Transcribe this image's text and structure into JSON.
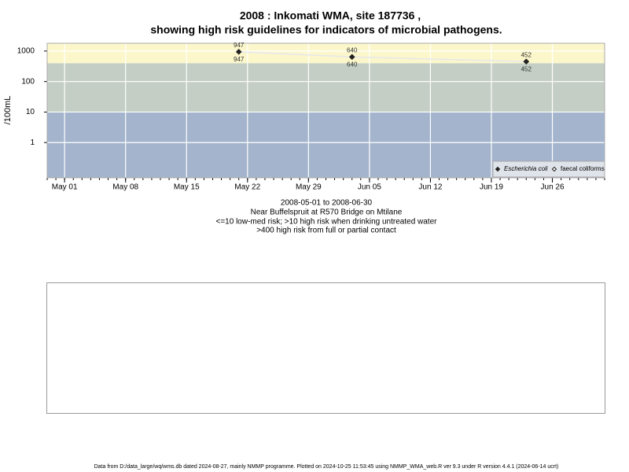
{
  "chart_data": {
    "type": "line",
    "title": "2008 : Inkomati WMA, site 187736 ,",
    "subtitle": "showing high risk guidelines for indicators of microbial pathogens.",
    "y_label": "/100mL",
    "x_caption": [
      "2008-05-01 to 2008-06-30",
      "Near Buffelspruit at R570 Bridge on Mtilane",
      "<=10 low-med risk; >10 high risk when drinking untreated water",
      ">400 high risk from full or partial contact"
    ],
    "footer": "Data from D:/data_large/wq/wms.db dated 2024-08-27, mainly NMMP programme. Plotted on 2024-10-25 11:53:45 using NMMP_WMA_web.R ver 9.3 under R version 4.4.1 (2024-06-14 ucrt)",
    "log_scale": true,
    "grid": true,
    "legend_position": "bottom-right",
    "x": [
      "2008-05-21",
      "2008-06-03",
      "2008-06-23"
    ],
    "series": [
      {
        "name": "Escherichia coli",
        "color": "#222222",
        "values": [
          947,
          640,
          452
        ]
      },
      {
        "name": "faecal coliforms",
        "color": "#222222",
        "values": [
          947,
          640,
          452
        ]
      }
    ],
    "bands": [
      {
        "to": 10,
        "color": "#a3b4cc"
      },
      {
        "from": 10,
        "to": 400,
        "color": "#c4cec4"
      },
      {
        "from": 400,
        "color": "#fcf7cb"
      }
    ],
    "xlim": [
      "2008-04-29",
      "2008-07-02"
    ],
    "xticks": [
      {
        "value": "2008-05-01",
        "label": "May 01"
      },
      {
        "value": "2008-05-08",
        "label": "May 08"
      },
      {
        "value": "2008-05-15",
        "label": "May 15"
      },
      {
        "value": "2008-05-22",
        "label": "May 22"
      },
      {
        "value": "2008-05-29",
        "label": "May 29"
      },
      {
        "value": "2008-06-05",
        "label": "Jun 05"
      },
      {
        "value": "2008-06-12",
        "label": "Jun 12"
      },
      {
        "value": "2008-06-19",
        "label": "Jun 19"
      },
      {
        "value": "2008-06-26",
        "label": "Jun 26"
      }
    ],
    "ylim": [
      0.07,
      1800
    ],
    "yticks": [
      1,
      10,
      100,
      1000
    ]
  }
}
